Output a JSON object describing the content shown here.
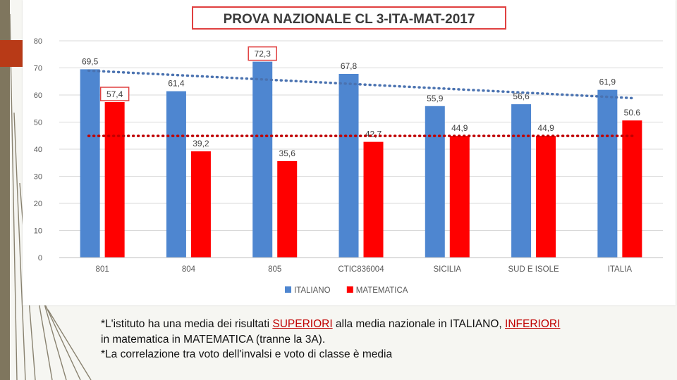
{
  "caption": {
    "line1_a": "*L'istituto ha una media dei risultati ",
    "line1_hl1": "SUPERIORI",
    "line1_b": " alla media nazionale in ITALIANO, ",
    "line1_hl2": "INFERIORI",
    "line2": "in matematica in MATEMATICA (tranne la 3A).",
    "line3": "*La correlazione tra voto dell'invalsi e voto di classe è media"
  },
  "chart_data": {
    "type": "bar",
    "title": "PROVA NAZIONALE CL 3-ITA-MAT-2017",
    "categories": [
      "801",
      "804",
      "805",
      "CTIC836004",
      "SICILIA",
      "SUD E ISOLE",
      "ITALIA"
    ],
    "series": [
      {
        "name": "ITALIANO",
        "color": "#4e86d0",
        "values": [
          69.5,
          61.4,
          72.3,
          67.8,
          55.9,
          56.6,
          61.9
        ],
        "labels": [
          "69,5",
          "61,4",
          "72,3",
          "67,8",
          "55,9",
          "56,6",
          "61,9"
        ]
      },
      {
        "name": "MATEMATICA",
        "color": "#ff0000",
        "values": [
          57.4,
          39.2,
          35.6,
          42.7,
          44.9,
          44.9,
          50.6
        ],
        "labels": [
          "57,4",
          "39,2",
          "35,6",
          "42,7",
          "44,9",
          "44,9",
          "50.6"
        ]
      }
    ],
    "trendlines": [
      {
        "series": "ITALIANO",
        "color": "#4a72b0",
        "from": 69.0,
        "to": 58.8
      },
      {
        "series": "MATEMATICA",
        "color": "#c00000",
        "from": 44.9,
        "to": 44.9
      }
    ],
    "highlighted_labels": [
      {
        "series": "ITALIANO",
        "category": "805"
      },
      {
        "series": "MATEMATICA",
        "category": "801"
      }
    ],
    "ylim": [
      0,
      80
    ],
    "yticks": [
      0,
      10,
      20,
      30,
      40,
      50,
      60,
      70,
      80
    ],
    "grid": true,
    "legend": "bottom"
  }
}
